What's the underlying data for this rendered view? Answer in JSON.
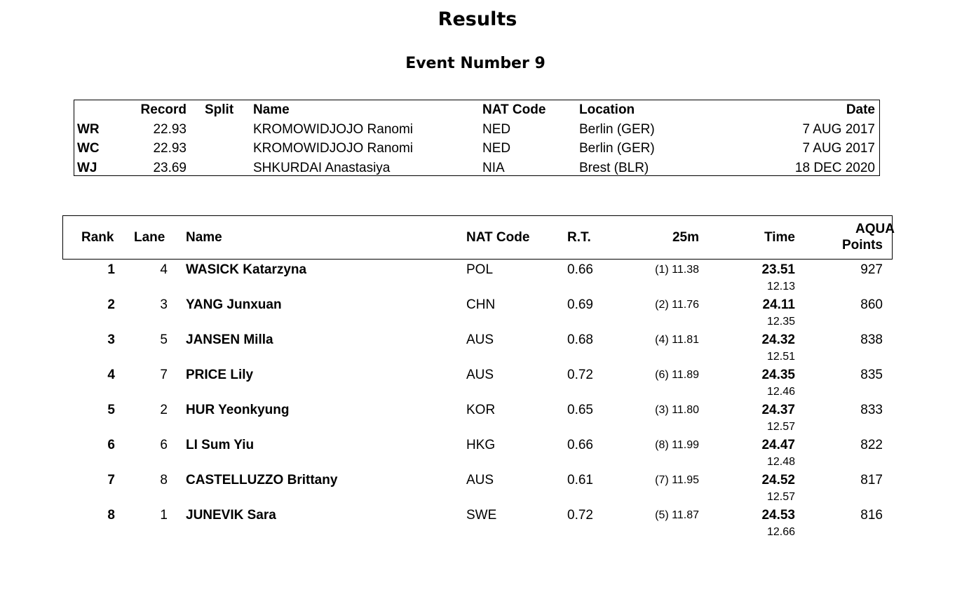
{
  "title": "Results",
  "event": "Event Number 9",
  "records": {
    "headers": {
      "record": "Record",
      "split": "Split",
      "name": "Name",
      "nat": "NAT Code",
      "location": "Location",
      "date": "Date"
    },
    "rows": [
      {
        "code": "WR",
        "record": "22.93",
        "split": "",
        "name": "KROMOWIDJOJO Ranomi",
        "nat": "NED",
        "location": "Berlin (GER)",
        "date": "7 AUG 2017"
      },
      {
        "code": "WC",
        "record": "22.93",
        "split": "",
        "name": "KROMOWIDJOJO Ranomi",
        "nat": "NED",
        "location": "Berlin (GER)",
        "date": "7 AUG 2017"
      },
      {
        "code": "WJ",
        "record": "23.69",
        "split": "",
        "name": "SHKURDAI Anastasiya",
        "nat": "NIA",
        "location": "Brest (BLR)",
        "date": "18 DEC 2020"
      }
    ]
  },
  "results": {
    "headers": {
      "rank": "Rank",
      "lane": "Lane",
      "name": "Name",
      "nat": "NAT Code",
      "rt": "R.T.",
      "split25": "25m",
      "time": "Time",
      "points_line1": "AQUA",
      "points_line2": "Points"
    },
    "rows": [
      {
        "rank": "1",
        "lane": "4",
        "name": "WASICK Katarzyna",
        "nat": "POL",
        "rt": "0.66",
        "split25": "(1) 11.38",
        "time": "23.51",
        "split50": "12.13",
        "points": "927"
      },
      {
        "rank": "2",
        "lane": "3",
        "name": "YANG Junxuan",
        "nat": "CHN",
        "rt": "0.69",
        "split25": "(2) 11.76",
        "time": "24.11",
        "split50": "12.35",
        "points": "860"
      },
      {
        "rank": "3",
        "lane": "5",
        "name": "JANSEN Milla",
        "nat": "AUS",
        "rt": "0.68",
        "split25": "(4) 11.81",
        "time": "24.32",
        "split50": "12.51",
        "points": "838"
      },
      {
        "rank": "4",
        "lane": "7",
        "name": "PRICE Lily",
        "nat": "AUS",
        "rt": "0.72",
        "split25": "(6) 11.89",
        "time": "24.35",
        "split50": "12.46",
        "points": "835"
      },
      {
        "rank": "5",
        "lane": "2",
        "name": "HUR Yeonkyung",
        "nat": "KOR",
        "rt": "0.65",
        "split25": "(3) 11.80",
        "time": "24.37",
        "split50": "12.57",
        "points": "833"
      },
      {
        "rank": "6",
        "lane": "6",
        "name": "LI Sum Yiu",
        "nat": "HKG",
        "rt": "0.66",
        "split25": "(8) 11.99",
        "time": "24.47",
        "split50": "12.48",
        "points": "822"
      },
      {
        "rank": "7",
        "lane": "8",
        "name": "CASTELLUZZO Brittany",
        "nat": "AUS",
        "rt": "0.61",
        "split25": "(7) 11.95",
        "time": "24.52",
        "split50": "12.57",
        "points": "817"
      },
      {
        "rank": "8",
        "lane": "1",
        "name": "JUNEVIK Sara",
        "nat": "SWE",
        "rt": "0.72",
        "split25": "(5) 11.87",
        "time": "24.53",
        "split50": "12.66",
        "points": "816"
      }
    ]
  }
}
